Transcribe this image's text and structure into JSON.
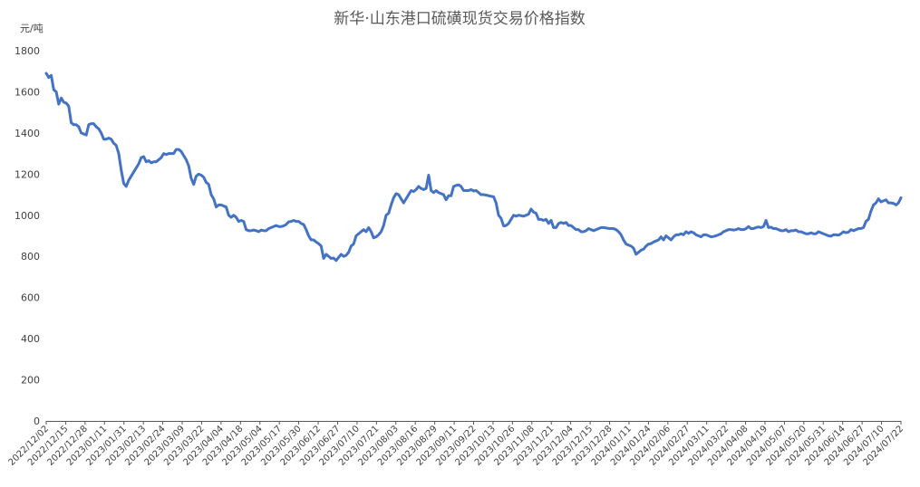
{
  "chart_data": {
    "type": "line",
    "title": "新华·山东港口硫磺现货交易价格指数",
    "ylabel": "元/吨",
    "xlabel": "",
    "ylim": [
      0,
      1800
    ],
    "yticks": [
      0,
      200,
      400,
      600,
      800,
      1000,
      1200,
      1400,
      1600,
      1800
    ],
    "grid": false,
    "legend": "none",
    "line_color": "#4472C4",
    "x_tick_labels": [
      "2022/12/02",
      "2022/12/15",
      "2022/12/28",
      "2023/01/11",
      "2023/01/31",
      "2023/02/13",
      "2023/02/24",
      "2023/03/09",
      "2023/03/22",
      "2023/04/04",
      "2023/04/18",
      "2023/05/04",
      "2023/05/17",
      "2023/05/30",
      "2023/06/12",
      "2023/06/27",
      "2023/07/10",
      "2023/07/21",
      "2023/08/03",
      "2023/08/16",
      "2023/08/29",
      "2023/09/11",
      "2023/09/22",
      "2023/10/13",
      "2023/10/26",
      "2023/11/08",
      "2023/11/21",
      "2023/12/04",
      "2023/12/15",
      "2023/12/28",
      "2024/01/11",
      "2024/01/24",
      "2024/02/06",
      "2024/02/27",
      "2024/03/11",
      "2024/03/22",
      "2024/04/08",
      "2024/04/19",
      "2024/05/07",
      "2024/05/20",
      "2024/05/31",
      "2024/06/14",
      "2024/06/27",
      "2024/07/10",
      "2024/07/22"
    ],
    "series": [
      {
        "values": [
          1690,
          1670,
          1680,
          1610,
          1600,
          1540,
          1570,
          1550,
          1545,
          1530,
          1450,
          1440,
          1440,
          1430,
          1400,
          1395,
          1390,
          1440,
          1445,
          1445,
          1430,
          1420,
          1400,
          1370,
          1370,
          1375,
          1370,
          1350,
          1340,
          1300,
          1220,
          1155,
          1140,
          1170,
          1190,
          1210,
          1230,
          1250,
          1280,
          1285,
          1260,
          1265,
          1255,
          1260,
          1260,
          1270,
          1280,
          1300,
          1295,
          1300,
          1300,
          1300,
          1320,
          1320,
          1310,
          1290,
          1270,
          1240,
          1180,
          1150,
          1190,
          1200,
          1195,
          1185,
          1160,
          1150,
          1100,
          1080,
          1040,
          1050,
          1050,
          1045,
          1040,
          1000,
          990,
          1000,
          990,
          970,
          975,
          970,
          930,
          925,
          925,
          928,
          925,
          920,
          928,
          925,
          925,
          935,
          940,
          945,
          950,
          945,
          945,
          948,
          955,
          968,
          970,
          975,
          970,
          970,
          960,
          955,
          930,
          900,
          880,
          880,
          870,
          862,
          850,
          790,
          810,
          800,
          790,
          792,
          780,
          795,
          810,
          800,
          805,
          820,
          850,
          860,
          900,
          910,
          920,
          930,
          920,
          940,
          920,
          890,
          895,
          905,
          920,
          950,
          1000,
          1010,
          1050,
          1085,
          1105,
          1100,
          1080,
          1060,
          1080,
          1100,
          1120,
          1115,
          1125,
          1140,
          1130,
          1125,
          1130,
          1195,
          1120,
          1110,
          1120,
          1110,
          1105,
          1100,
          1075,
          1095,
          1095,
          1140,
          1145,
          1148,
          1140,
          1120,
          1120,
          1120,
          1125,
          1118,
          1120,
          1110,
          1100,
          1100,
          1098,
          1095,
          1092,
          1090,
          1060,
          1000,
          985,
          948,
          950,
          960,
          980,
          1000,
          995,
          1000,
          998,
          995,
          1000,
          1005,
          1030,
          1015,
          1010,
          980,
          980,
          975,
          980,
          960,
          975,
          940,
          940,
          960,
          965,
          960,
          965,
          950,
          950,
          940,
          930,
          930,
          920,
          920,
          925,
          935,
          930,
          925,
          930,
          935,
          940,
          940,
          938,
          936,
          935,
          935,
          930,
          920,
          905,
          880,
          860,
          855,
          850,
          840,
          810,
          820,
          830,
          835,
          850,
          860,
          862,
          870,
          875,
          880,
          895,
          880,
          900,
          890,
          880,
          895,
          905,
          905,
          910,
          905,
          920,
          912,
          920,
          915,
          905,
          900,
          895,
          905,
          905,
          900,
          895,
          897,
          900,
          905,
          910,
          920,
          925,
          930,
          930,
          928,
          930,
          935,
          930,
          930,
          935,
          945,
          935,
          935,
          940,
          943,
          940,
          945,
          975,
          940,
          942,
          935,
          935,
          930,
          925,
          925,
          930,
          920,
          925,
          925,
          928,
          920,
          920,
          915,
          910,
          910,
          915,
          910,
          910,
          920,
          915,
          910,
          905,
          900,
          898,
          905,
          905,
          903,
          910,
          920,
          915,
          918,
          930,
          925,
          930,
          935,
          935,
          940,
          970,
          980,
          1020,
          1050,
          1060,
          1080,
          1065,
          1070,
          1075,
          1060,
          1060,
          1058,
          1050,
          1060,
          1085
        ]
      }
    ]
  }
}
